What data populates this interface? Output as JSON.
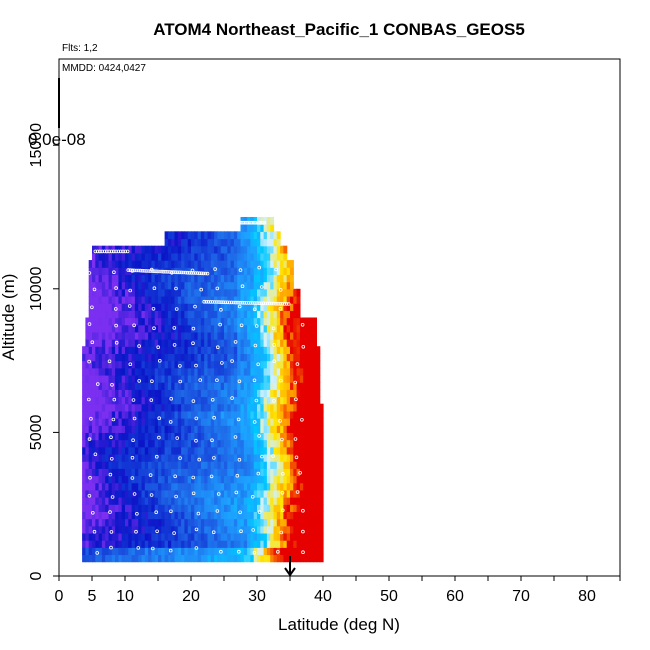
{
  "chart_data": {
    "type": "heatmap",
    "title": "ATOM4 Northeast_Pacific_1 CONBAS_GEOS5",
    "subtitle": "Flts: 1,2",
    "annotation": "MMDD: 0424,0427",
    "colorbar_label": "0.0e-08",
    "xlabel": "Latitude (deg N)",
    "ylabel": "Altitude (m)",
    "xlim": [
      0,
      85
    ],
    "ylim": [
      0,
      18000
    ],
    "x_ticks": [
      0,
      5,
      10,
      20,
      30,
      40,
      50,
      60,
      70,
      80
    ],
    "y_ticks": [
      0,
      5000,
      10000,
      15000
    ],
    "marker": {
      "latitude": 35,
      "altitude": 0,
      "symbol": "down-arrow"
    },
    "colors": {
      "violet": "#7b2ff0",
      "navy": "#0a14c8",
      "blue": "#1e64e6",
      "sky": "#1ea0ff",
      "cyan": "#00c8ff",
      "pale": "#d2f0ff",
      "yellow": "#ffe600",
      "orange": "#ff9600",
      "red": "#e60000",
      "track": "#ffffff"
    },
    "grid": false,
    "legend": "none"
  }
}
